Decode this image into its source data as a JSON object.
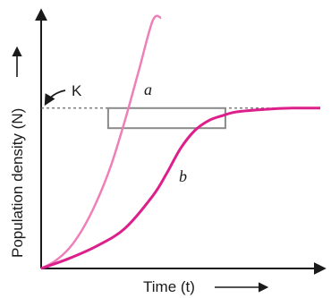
{
  "chart_data": {
    "type": "line",
    "title": "",
    "xlabel": "Time (t)",
    "ylabel": "Population density (N)",
    "xlim": [
      0,
      10
    ],
    "ylim": [
      0,
      10
    ],
    "grid": false,
    "annotations": {
      "carrying_capacity_label": "K",
      "carrying_capacity_value": 6.4
    },
    "series": [
      {
        "name": "a",
        "color": "#ef7fb8",
        "x": [
          0,
          0.5,
          1,
          1.5,
          2,
          2.5,
          3,
          3.5,
          4,
          4.3
        ],
        "y": [
          0,
          0.3,
          0.8,
          1.6,
          2.7,
          4.1,
          5.9,
          7.9,
          9.9,
          10.0
        ]
      },
      {
        "name": "b",
        "color": "#dd1f8c",
        "x": [
          0,
          1,
          2,
          3,
          4,
          4.5,
          5,
          5.5,
          6,
          6.5,
          7,
          8,
          9,
          10
        ],
        "y": [
          0,
          0.4,
          0.9,
          1.6,
          2.9,
          3.8,
          4.8,
          5.5,
          5.9,
          6.1,
          6.25,
          6.35,
          6.4,
          6.4
        ]
      }
    ],
    "highlight_box": {
      "x": [
        2.4,
        6.6
      ],
      "y": [
        5.6,
        6.4
      ]
    }
  }
}
